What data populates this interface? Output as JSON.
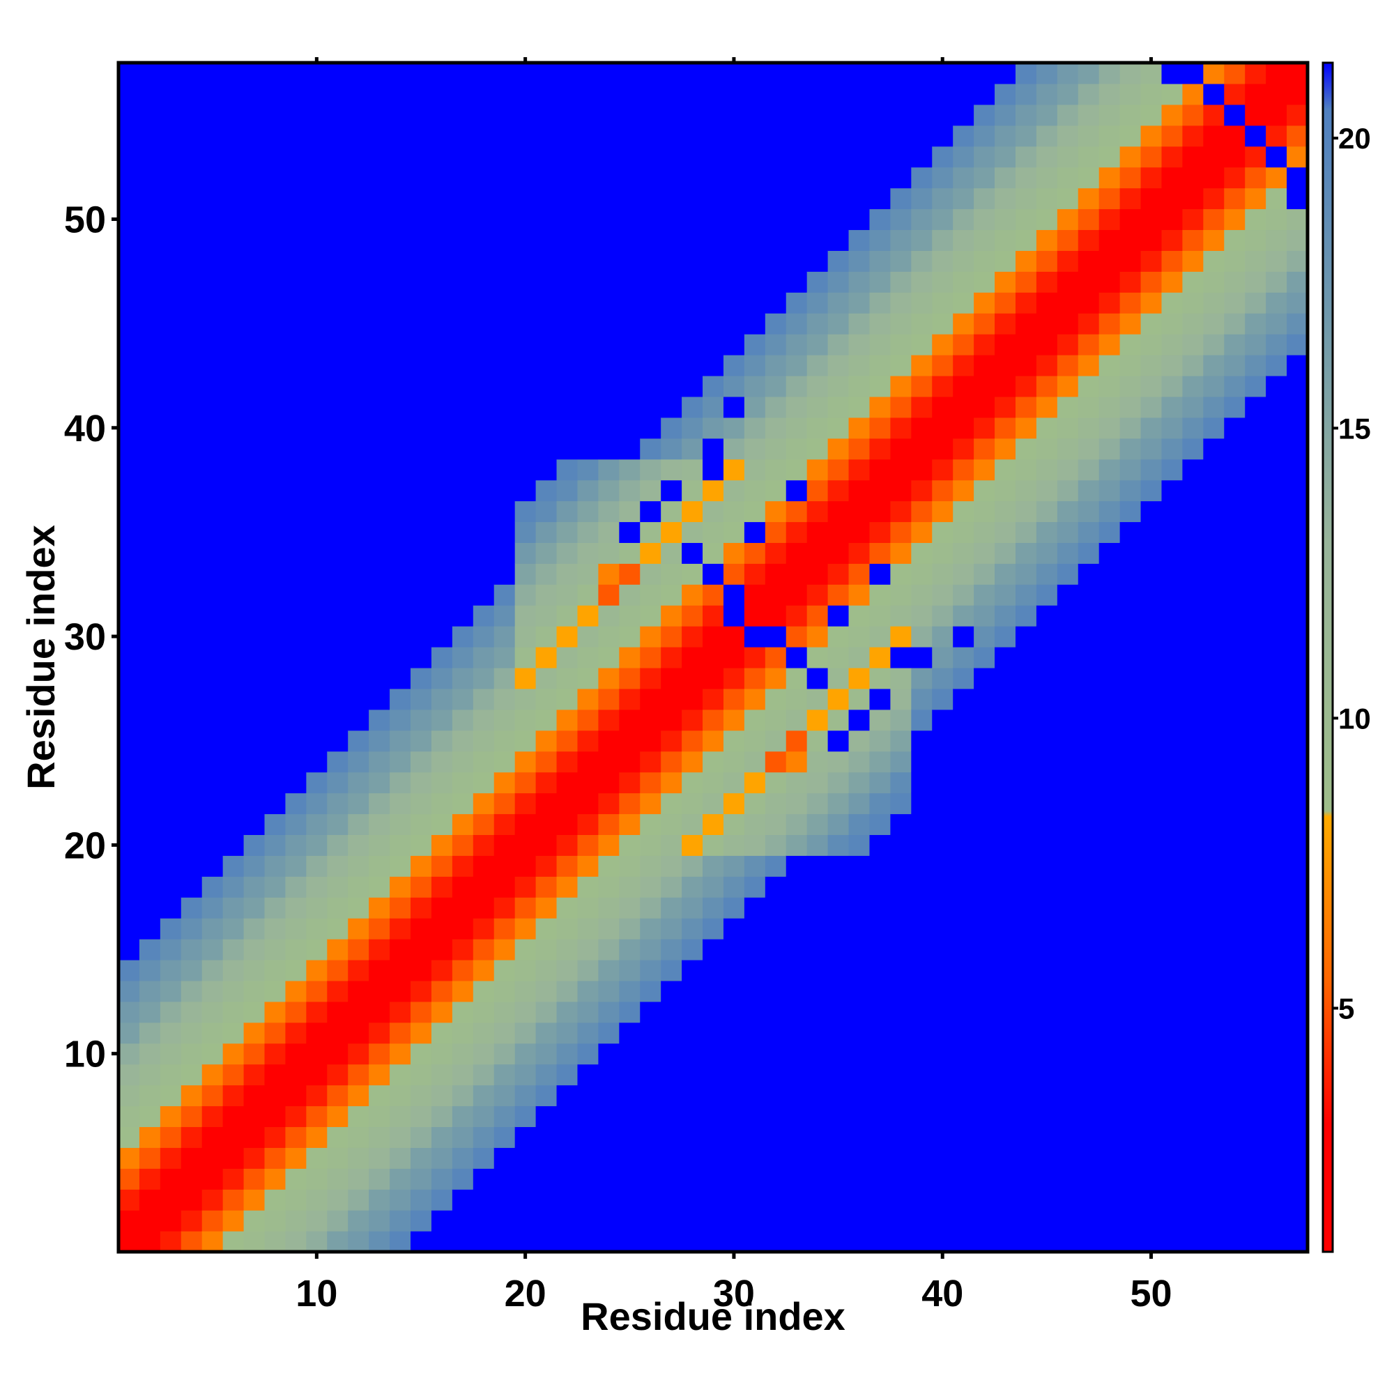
{
  "chart_data": {
    "type": "heatmap",
    "title": "",
    "xlabel": "Residue index",
    "ylabel": "Residue index",
    "n_residues": 57,
    "xlim": [
      0.5,
      57.5
    ],
    "ylim": [
      0.5,
      57.5
    ],
    "x_ticks": [
      10,
      20,
      30,
      40,
      50
    ],
    "y_ticks": [
      10,
      20,
      30,
      40,
      50
    ],
    "grid": false,
    "colorbar": {
      "range": [
        0.8,
        21.3
      ],
      "ticks": [
        5,
        10,
        15,
        20
      ],
      "stops": [
        {
          "value": 0.8,
          "color": "#ff0000"
        },
        {
          "value": 3.0,
          "color": "#ff0000"
        },
        {
          "value": 5.5,
          "color": "#ff6600"
        },
        {
          "value": 8.3,
          "color": "#ffaa00"
        },
        {
          "value": 8.4,
          "color": "#9ebd8a"
        },
        {
          "value": 13.0,
          "color": "#98b49a"
        },
        {
          "value": 17.0,
          "color": "#6f98ac"
        },
        {
          "value": 20.5,
          "color": "#5080c0"
        },
        {
          "value": 21.3,
          "color": "#0000ff"
        }
      ],
      "saturated_color": "#0000ff"
    },
    "value_model": "distance between residue i and residue j; approximately 0.8 + 1.45*|i-j| for |i-j| <= 13, saturated (>20.5) beyond",
    "scale_per_separation": 1.45,
    "offset": 0.8,
    "cutoff": 20.5,
    "max_value": 21.3,
    "band_extensions": [
      {
        "i_range": [
          20,
          38
        ],
        "extra_separation": 3
      },
      {
        "i_range": [
          24,
          33
        ],
        "extra_separation": 2
      }
    ],
    "saturated_holes": [
      [
        36,
        26
      ],
      [
        35,
        31
      ],
      [
        31,
        30
      ],
      [
        30,
        32
      ],
      [
        33,
        29
      ],
      [
        28,
        34
      ],
      [
        25,
        35
      ],
      [
        27,
        37
      ],
      [
        38,
        29
      ],
      [
        39,
        29
      ],
      [
        41,
        30
      ],
      [
        37,
        33
      ],
      [
        52,
        57
      ],
      [
        53,
        56
      ],
      [
        55,
        54
      ],
      [
        56,
        53
      ],
      [
        57,
        52
      ],
      [
        57,
        51
      ]
    ]
  }
}
